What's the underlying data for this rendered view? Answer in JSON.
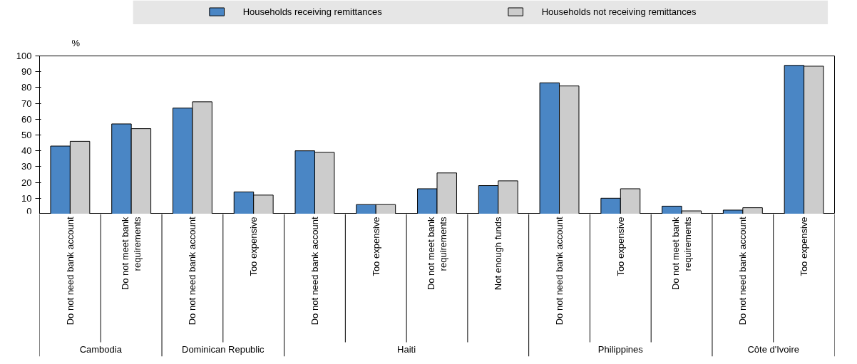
{
  "chart_data": {
    "type": "bar",
    "ylabel": "%",
    "categories": [
      "Do not need bank account",
      "Do not meet bank requirements",
      "Do not need bank account",
      "Too expensive",
      "Do not need bank account",
      "Too expensive",
      "Do not meet bank requirements",
      "Not enough funds",
      "Do not need bank account",
      "Too expensive",
      "Do not meet bank requirements",
      "Do not need bank account",
      "Too expensive"
    ],
    "annotations": [
      "Cambodia",
      "Dominican Republic",
      "Haiti",
      "Philippines",
      "Côte d'Ivoire"
    ],
    "series": [
      {
        "name": "Households receiving remittances",
        "color": "#4a86c5",
        "values": [
          43,
          57,
          67,
          14,
          40,
          6,
          16,
          18,
          83,
          10,
          5,
          2.5,
          94
        ]
      },
      {
        "name": "Households not receiving remittances",
        "color": "#cccccc",
        "values": [
          46,
          54,
          71,
          12,
          39,
          6,
          26,
          21,
          81,
          16,
          2,
          4,
          93.5
        ]
      }
    ],
    "ylim": [
      0,
      100
    ],
    "yticks": [
      0,
      10,
      20,
      30,
      40,
      50,
      60,
      70,
      80,
      90,
      100
    ],
    "grid": false,
    "legend": "top"
  }
}
